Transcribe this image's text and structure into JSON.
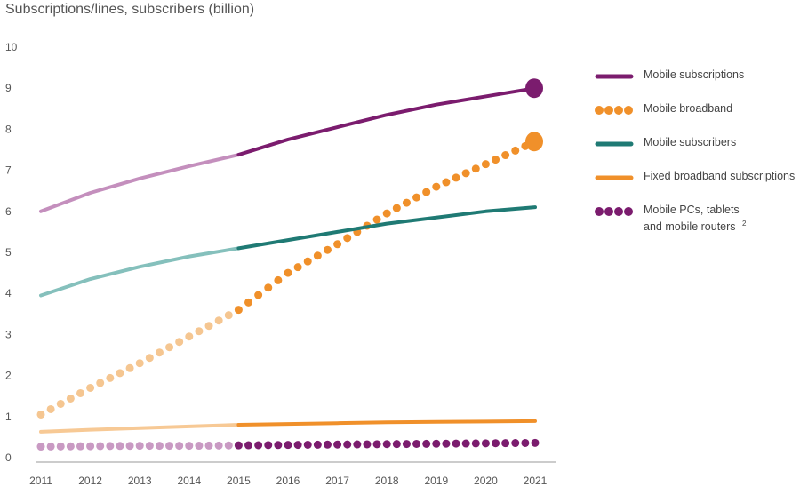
{
  "title": "Subscriptions/lines, subscribers (billion)",
  "chart_data": {
    "type": "line",
    "x": [
      2011,
      2012,
      2013,
      2014,
      2015,
      2016,
      2017,
      2018,
      2019,
      2020,
      2021
    ],
    "ylim": [
      0,
      10
    ],
    "xlim": [
      2011,
      2021
    ],
    "yticks": [
      "0",
      "1",
      "2",
      "3",
      "4",
      "5",
      "6",
      "7",
      "8",
      "9",
      "10"
    ],
    "xticks": [
      "2011",
      "2012",
      "2013",
      "2014",
      "2015",
      "2016",
      "2017",
      "2018",
      "2019",
      "2020",
      "2021"
    ],
    "forecast_start": 2015,
    "grid": false,
    "legend_position": "right",
    "series": [
      {
        "name": "Mobile subscriptions",
        "style": "solid",
        "color": "#7b1c6e",
        "light_color": "#c48fbd",
        "values": [
          6.0,
          6.45,
          6.8,
          7.1,
          7.38,
          7.75,
          8.05,
          8.35,
          8.6,
          8.8,
          9.0
        ],
        "end_marker": true
      },
      {
        "name": "Mobile broadband",
        "style": "dotted",
        "color": "#f0902a",
        "light_color": "#f5c691",
        "values": [
          1.05,
          1.7,
          2.3,
          2.95,
          3.6,
          4.5,
          5.2,
          5.95,
          6.6,
          7.15,
          7.7
        ],
        "end_marker": true
      },
      {
        "name": "Mobile subscribers",
        "style": "solid",
        "color": "#1f7a74",
        "light_color": "#85c0bc",
        "values": [
          3.95,
          4.35,
          4.65,
          4.9,
          5.1,
          5.3,
          5.5,
          5.7,
          5.85,
          6.0,
          6.1
        ],
        "end_marker": false
      },
      {
        "name": "Fixed broadband subscriptions",
        "style": "solid",
        "color": "#f0902a",
        "light_color": "#f7c995",
        "values": [
          0.63,
          0.68,
          0.72,
          0.76,
          0.8,
          0.82,
          0.84,
          0.86,
          0.87,
          0.88,
          0.89
        ],
        "end_marker": false
      },
      {
        "name": "Mobile PCs, tablets\nand mobile routers",
        "superscript": "2",
        "style": "dotted",
        "color": "#7b1c6e",
        "light_color": "#c99ac3",
        "values": [
          0.27,
          0.28,
          0.29,
          0.29,
          0.3,
          0.31,
          0.32,
          0.33,
          0.34,
          0.35,
          0.36
        ],
        "end_marker": false
      }
    ]
  }
}
